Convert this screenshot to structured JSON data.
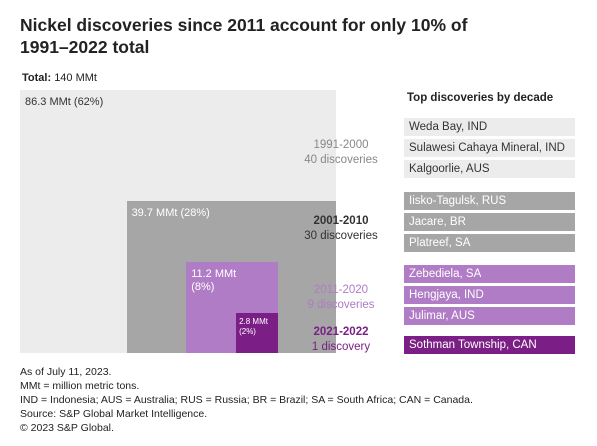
{
  "chart_data": {
    "type": "nested-square",
    "title": "Nickel discoveries since 2011 account for only 10% of 1991–2022 total",
    "total": {
      "label": "Total:",
      "value": 140,
      "value_label": "140 MMt"
    },
    "categories": [
      "1991-2000",
      "2001-2010",
      "2011-2020",
      "2021-2022"
    ],
    "values": [
      86.3,
      39.7,
      11.2,
      2.8
    ],
    "value_labels": [
      "86.3 MMt (62%)",
      "39.7 MMt (28%)",
      "11.2 MMt (8%)",
      "2.8 MMt (2%)"
    ],
    "discovery_counts": [
      "40 discoveries",
      "30 discoveries",
      "9 discoveries",
      "1 discovery"
    ],
    "colors": [
      "#ececec",
      "#a6a6a6",
      "#b07cc6",
      "#7b1f86"
    ],
    "list_title": "Top discoveries by decade",
    "top_discoveries": [
      [
        "Weda Bay, IND",
        "Sulawesi Cahaya Mineral, IND",
        "Kalgoorlie, AUS"
      ],
      [
        "Iisko-Tagulsk, RUS",
        "Jacare, BR",
        "Platreef, SA"
      ],
      [
        "Zebediela, SA",
        "Hengjaya, IND",
        "Julimar, AUS"
      ],
      [
        "Sothman Township, CAN"
      ]
    ],
    "notes": [
      "As of July 11, 2023.",
      "MMt = million metric tons.",
      "IND = Indonesia; AUS = Australia; RUS = Russia; BR = Brazil; SA = South Africa; CAN = Canada.",
      "Source: S&P Global Market Intelligence.",
      "© 2023 S&P Global."
    ]
  }
}
